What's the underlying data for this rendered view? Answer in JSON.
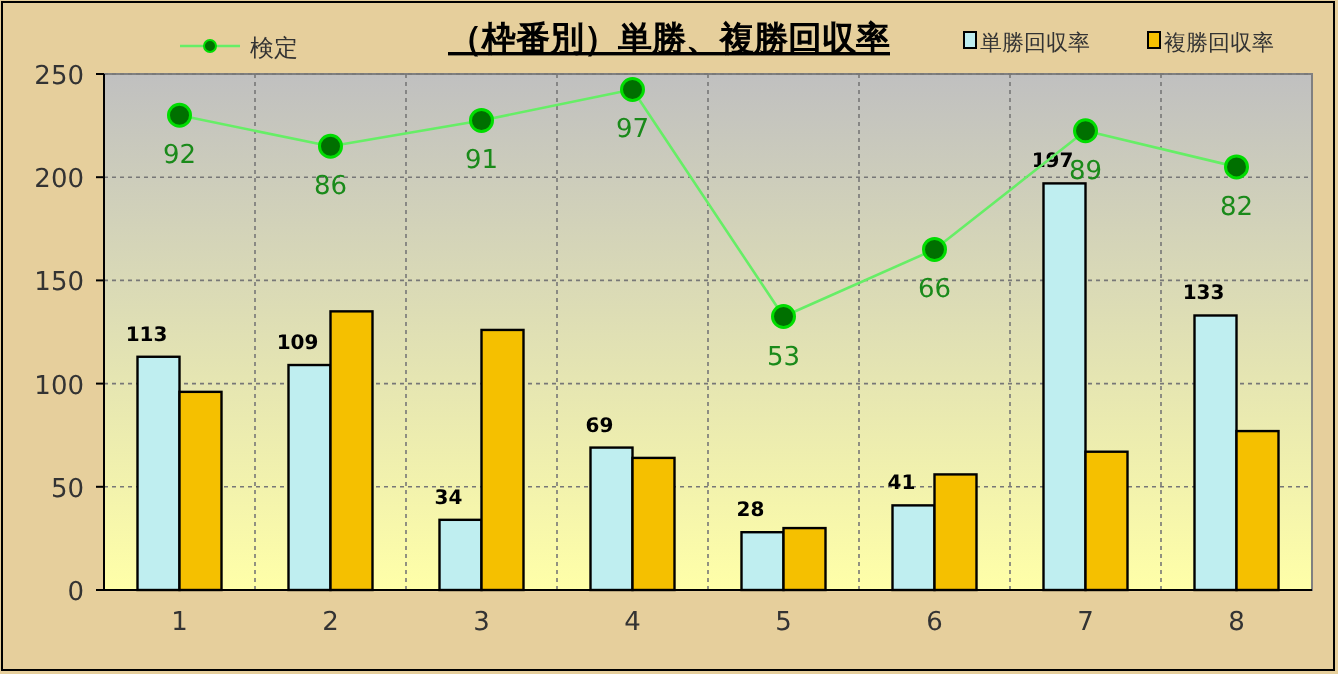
{
  "chart_data": {
    "type": "bar",
    "title": "（枠番別）単勝、複勝回収率",
    "categories": [
      "1",
      "2",
      "3",
      "4",
      "5",
      "6",
      "7",
      "8"
    ],
    "series": [
      {
        "name": "単勝回収率",
        "color": "#bfeef0",
        "values": [
          113,
          109,
          34,
          69,
          28,
          41,
          197,
          133
        ],
        "value_labels": [
          "113",
          "109",
          "34",
          "69",
          "28",
          "41",
          "197",
          "133"
        ]
      },
      {
        "name": "複勝回収率",
        "color": "#f5c000",
        "values": [
          96,
          135,
          126,
          64,
          30,
          56,
          67,
          77
        ]
      },
      {
        "name": "検定",
        "type": "line",
        "axis": "y2",
        "color": "#66ee66",
        "marker": "circle",
        "values": [
          92,
          86,
          91,
          97,
          53,
          66,
          89,
          82
        ],
        "value_labels": [
          "92",
          "86",
          "91",
          "97",
          "53",
          "66",
          "89",
          "82"
        ]
      }
    ],
    "ylim": [
      0,
      250
    ],
    "yticks": [
      0,
      50,
      100,
      150,
      200,
      250
    ],
    "y2lim": [
      0,
      100
    ],
    "grid": true,
    "legend": "top"
  }
}
